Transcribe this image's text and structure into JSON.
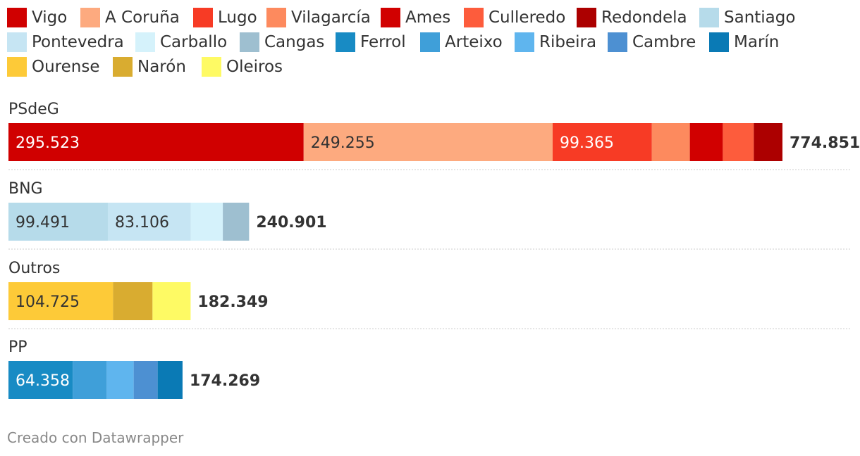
{
  "chart_data": {
    "type": "bar",
    "stacked": true,
    "orientation": "horizontal",
    "legend_position": "top",
    "grid": false,
    "legend": [
      {
        "name": "Vigo",
        "color": "#d00000"
      },
      {
        "name": "A Coruña",
        "color": "#fdaa7f"
      },
      {
        "name": "Lugo",
        "color": "#f73b25"
      },
      {
        "name": "Vilagarcía",
        "color": "#fd8a5e"
      },
      {
        "name": "Ames",
        "color": "#d10000"
      },
      {
        "name": "Culleredo",
        "color": "#fd5c3c"
      },
      {
        "name": "Redondela",
        "color": "#ac0000"
      },
      {
        "name": "Santiago",
        "color": "#b6dbea"
      },
      {
        "name": "Pontevedra",
        "color": "#c6e5f3"
      },
      {
        "name": "Carballo",
        "color": "#d5f2fb"
      },
      {
        "name": "Cangas",
        "color": "#9ebfd0"
      },
      {
        "name": "Ferrol",
        "color": "#188bc4"
      },
      {
        "name": "Arteixo",
        "color": "#3f9fd9"
      },
      {
        "name": "Ribeira",
        "color": "#5fb5ee"
      },
      {
        "name": "Cambre",
        "color": "#4d90d2"
      },
      {
        "name": "Marín",
        "color": "#0a7ab5"
      },
      {
        "name": "Ourense",
        "color": "#fdca38"
      },
      {
        "name": "Narón",
        "color": "#d9ac30"
      },
      {
        "name": "Oleiros",
        "color": "#fefa64"
      }
    ],
    "groups": [
      {
        "label": "PSdeG",
        "total": "774.851",
        "segments": [
          {
            "series": "Vigo",
            "value": 295523,
            "label": "295.523"
          },
          {
            "series": "A Coruña",
            "value": 249255,
            "label": "249.255"
          },
          {
            "series": "Lugo",
            "value": 99365,
            "label": "99.365"
          },
          {
            "series": "Vilagarcía",
            "value": 38000,
            "label": ""
          },
          {
            "series": "Ames",
            "value": 33000,
            "label": ""
          },
          {
            "series": "Culleredo",
            "value": 31000,
            "label": ""
          },
          {
            "series": "Redondela",
            "value": 28708,
            "label": ""
          }
        ]
      },
      {
        "label": "BNG",
        "total": "240.901",
        "segments": [
          {
            "series": "Santiago",
            "value": 99491,
            "label": "99.491"
          },
          {
            "series": "Pontevedra",
            "value": 83106,
            "label": "83.106"
          },
          {
            "series": "Carballo",
            "value": 32000,
            "label": ""
          },
          {
            "series": "Cangas",
            "value": 26304,
            "label": ""
          }
        ]
      },
      {
        "label": "Outros",
        "total": "182.349",
        "segments": [
          {
            "series": "Ourense",
            "value": 104725,
            "label": "104.725"
          },
          {
            "series": "Narón",
            "value": 39500,
            "label": ""
          },
          {
            "series": "Oleiros",
            "value": 38124,
            "label": ""
          }
        ]
      },
      {
        "label": "PP",
        "total": "174.269",
        "segments": [
          {
            "series": "Ferrol",
            "value": 64358,
            "label": "64.358"
          },
          {
            "series": "Arteixo",
            "value": 34000,
            "label": ""
          },
          {
            "series": "Ribeira",
            "value": 27000,
            "label": ""
          },
          {
            "series": "Cambre",
            "value": 24000,
            "label": ""
          },
          {
            "series": "Marín",
            "value": 24911,
            "label": ""
          }
        ]
      }
    ],
    "dark_label_colors": [
      "#fdaa7f",
      "#b6dbea",
      "#c6e5f3",
      "#fdca38"
    ]
  },
  "footer": {
    "credit": "Creado con Datawrapper"
  }
}
